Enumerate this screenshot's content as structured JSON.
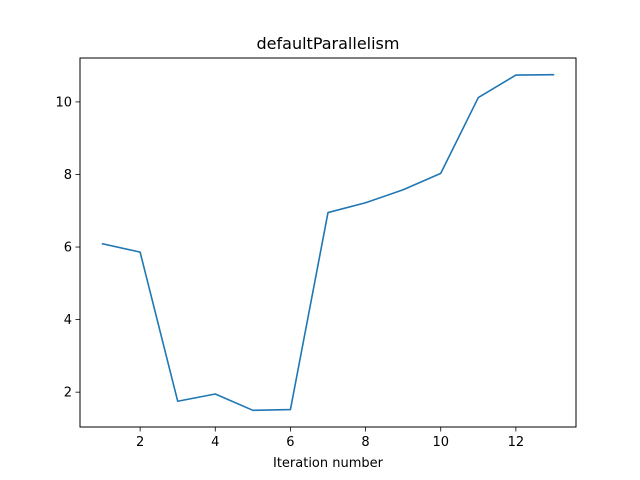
{
  "chart_data": {
    "type": "line",
    "title": "defaultParallelism",
    "xlabel": "Iteration number",
    "ylabel": "",
    "x": [
      1,
      2,
      3,
      4,
      5,
      6,
      7,
      8,
      9,
      10,
      11,
      12,
      13
    ],
    "series": [
      {
        "color": "#1f77b4",
        "values": [
          6.09,
          5.86,
          1.75,
          1.95,
          1.5,
          1.52,
          6.95,
          7.22,
          7.58,
          8.03,
          10.12,
          10.74,
          10.75
        ]
      }
    ],
    "xlim": [
      0.4,
      13.6
    ],
    "ylim": [
      1.04,
      11.21
    ],
    "xticks": [
      2,
      4,
      6,
      8,
      10,
      12
    ],
    "yticks": [
      2,
      4,
      6,
      8,
      10
    ],
    "grid": false
  }
}
